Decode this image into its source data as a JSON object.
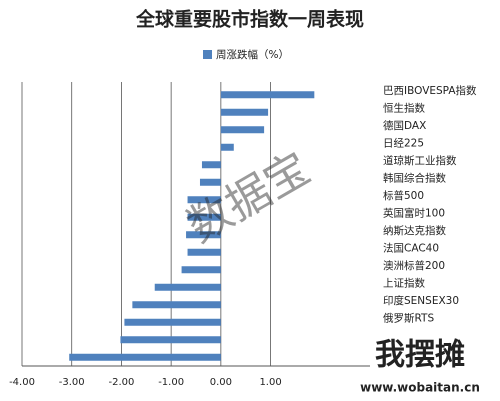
{
  "chart_data": {
    "type": "barh",
    "title": "全球重要股市指数一周表现",
    "series": [
      {
        "name": "周涨跌幅（%）",
        "color": "#4f81bd",
        "values": [
          1.88,
          0.95,
          0.87,
          0.26,
          -0.38,
          -0.42,
          -0.67,
          -0.67,
          -0.7,
          -0.67,
          -0.79,
          -1.33,
          -1.78,
          -1.94,
          -2.02,
          -3.05
        ]
      }
    ],
    "categories": [
      "巴西IBOVESPA指数",
      "恒生指数",
      "德国DAX",
      "日经225",
      "道琼斯工业指数",
      "韩国综合指数",
      "标普500",
      "英国富时100",
      "纳斯达克指数",
      "法国CAC40",
      "澳洲标普200",
      "上证指数",
      "印度SENSEX30",
      "俄罗斯RTS",
      null,
      null
    ],
    "xlim": [
      -4,
      3
    ],
    "xticks": [
      {
        "value": -4,
        "label": "-4.00"
      },
      {
        "value": -3,
        "label": "-3.00"
      },
      {
        "value": -2,
        "label": "-2.00"
      },
      {
        "value": -1,
        "label": "-1.00"
      },
      {
        "value": 0,
        "label": "0.00"
      },
      {
        "value": 1,
        "label": "1.00"
      }
    ],
    "grid": true,
    "legend": "top",
    "annotations": [
      "数据宝",
      "我摆摊",
      "www.wobaitan.cn"
    ]
  }
}
